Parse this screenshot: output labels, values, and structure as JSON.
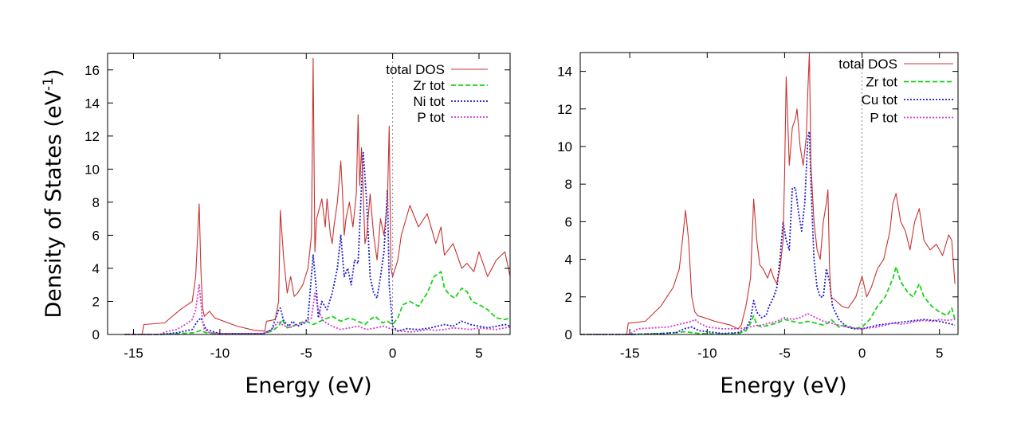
{
  "colors": {
    "total DOS": "#c83232",
    "Zr tot": "#19d219",
    "Ni tot": "#1e1ec8",
    "Cu tot": "#1e1ec8",
    "P tot": "#d23cd2",
    "axis": "#000000",
    "fermi": "#888888"
  },
  "chart_data": [
    {
      "type": "line",
      "xlabel": "Energy (eV)",
      "ylabel": "Density of States (eV-1)",
      "ylabel_parts": {
        "main": "Density of States (eV",
        "sup": "-1",
        "close": ")"
      },
      "xlim": [
        -16.5,
        6.8
      ],
      "ylim": [
        0,
        17
      ],
      "xticks": [
        -15,
        -10,
        -5,
        0,
        5
      ],
      "xtick_labels": [
        "-15",
        "-10",
        "-5",
        "0",
        "5"
      ],
      "yticks": [
        0,
        2,
        4,
        6,
        8,
        10,
        12,
        14,
        16
      ],
      "ytick_labels": [
        "0",
        "2",
        "4",
        "6",
        "8",
        "10",
        "12",
        "14",
        "16"
      ],
      "fermi_level": 0,
      "legend": [
        "total DOS",
        "Zr tot",
        "Ni tot",
        "P tot"
      ],
      "legend_position": "top-right",
      "series": [
        {
          "name": "total DOS",
          "style": "solid",
          "x": [
            -15.5,
            -14.5,
            -14.4,
            -13.2,
            -12.3,
            -11.6,
            -11.4,
            -11.2,
            -11.1,
            -11.0,
            -10.9,
            -10.8,
            -10.6,
            -10.3,
            -9.0,
            -8.0,
            -7.4,
            -7.3,
            -6.8,
            -6.6,
            -6.5,
            -6.3,
            -6.1,
            -5.9,
            -5.7,
            -5.5,
            -5.2,
            -4.9,
            -4.7,
            -4.6,
            -4.5,
            -4.4,
            -4.1,
            -3.9,
            -3.8,
            -3.6,
            -3.5,
            -3.4,
            -3.2,
            -3.0,
            -2.9,
            -2.8,
            -2.7,
            -2.5,
            -2.3,
            -2.1,
            -2.0,
            -1.9,
            -1.8,
            -1.7,
            -1.6,
            -1.5,
            -1.3,
            -1.1,
            -0.9,
            -0.7,
            -0.5,
            -0.3,
            -0.2,
            -0.1,
            0.0,
            0.3,
            0.5,
            1.0,
            1.5,
            2.0,
            2.5,
            2.8,
            3.0,
            3.5,
            4.0,
            4.3,
            4.7,
            5.0,
            5.5,
            6.0,
            6.5,
            6.8
          ],
          "y": [
            0,
            0,
            0.6,
            0.7,
            1.5,
            2.0,
            3.5,
            7.9,
            4.0,
            1.6,
            1.1,
            1.2,
            1.4,
            1.0,
            0.5,
            0.25,
            0.2,
            0.8,
            0.9,
            2.0,
            7.5,
            4.5,
            2.5,
            3.5,
            2.3,
            2.5,
            3.0,
            4.0,
            6.0,
            16.7,
            5.0,
            7.0,
            8.2,
            6.5,
            8.2,
            6.0,
            5.5,
            6.5,
            8.0,
            10.5,
            8.5,
            6.0,
            7.0,
            8.0,
            6.5,
            8.5,
            13.3,
            9.0,
            11.3,
            8.5,
            5.5,
            6.0,
            8.5,
            6.0,
            4.5,
            7.0,
            6.0,
            8.0,
            12.6,
            4.0,
            3.5,
            4.5,
            6.0,
            7.8,
            6.5,
            7.3,
            5.5,
            6.5,
            4.8,
            5.5,
            4.0,
            4.3,
            3.8,
            5.0,
            3.5,
            4.5,
            5.0,
            3.5
          ]
        },
        {
          "name": "Zr tot",
          "style": "dashed",
          "x": [
            -15.5,
            -13.5,
            -12.5,
            -11.5,
            -11.1,
            -10.8,
            -10.0,
            -7.5,
            -7.0,
            -6.6,
            -6.4,
            -6.1,
            -5.8,
            -5.4,
            -5.0,
            -4.6,
            -4.4,
            -4.0,
            -3.5,
            -3.0,
            -2.5,
            -2.0,
            -1.6,
            -1.3,
            -1.0,
            -0.6,
            -0.3,
            0.0,
            0.3,
            0.6,
            1.0,
            1.5,
            2.0,
            2.4,
            2.8,
            3.0,
            3.3,
            3.6,
            4.0,
            4.3,
            4.6,
            5.0,
            5.5,
            6.0,
            6.5,
            6.8
          ],
          "y": [
            0,
            0,
            0.05,
            0.1,
            0.25,
            0.1,
            0.05,
            0.05,
            0.2,
            0.5,
            0.9,
            0.4,
            0.5,
            0.7,
            0.8,
            0.6,
            0.7,
            0.9,
            1.1,
            0.8,
            1.0,
            0.8,
            0.6,
            0.9,
            1.1,
            0.7,
            0.8,
            0.6,
            1.0,
            1.8,
            2.0,
            1.7,
            2.5,
            3.5,
            3.8,
            2.8,
            2.4,
            2.2,
            2.8,
            2.6,
            2.0,
            1.8,
            1.5,
            1.0,
            0.9,
            1.0
          ]
        },
        {
          "name": "Ni tot",
          "style": "dotted",
          "x": [
            -15.5,
            -13.5,
            -12.5,
            -11.6,
            -11.3,
            -11.1,
            -10.8,
            -10.0,
            -7.5,
            -7.0,
            -6.6,
            -6.5,
            -6.3,
            -6.0,
            -5.8,
            -5.5,
            -5.1,
            -4.9,
            -4.6,
            -4.4,
            -4.3,
            -4.1,
            -3.8,
            -3.5,
            -3.2,
            -3.0,
            -2.8,
            -2.6,
            -2.4,
            -2.2,
            -2.0,
            -1.8,
            -1.7,
            -1.5,
            -1.3,
            -1.1,
            -0.9,
            -0.7,
            -0.5,
            -0.3,
            -0.2,
            0.0,
            0.3,
            0.8,
            1.5,
            2.2,
            3.0,
            3.5,
            4.0,
            4.5,
            5.0,
            5.5,
            6.0,
            6.5,
            6.8
          ],
          "y": [
            0,
            0,
            0.1,
            0.3,
            0.8,
            1.0,
            0.3,
            0.05,
            0.05,
            0.3,
            1.5,
            1.6,
            0.8,
            0.5,
            0.8,
            0.5,
            0.7,
            1.0,
            4.8,
            2.5,
            1.0,
            2.0,
            1.5,
            2.5,
            4.0,
            6.0,
            3.5,
            4.0,
            3.0,
            4.5,
            4.3,
            9.0,
            11.0,
            8.0,
            3.5,
            2.5,
            2.2,
            3.5,
            5.0,
            8.7,
            3.0,
            0.5,
            0.2,
            0.35,
            0.3,
            0.4,
            0.6,
            0.5,
            0.8,
            0.6,
            0.5,
            0.4,
            0.5,
            0.6,
            0.5
          ]
        },
        {
          "name": "P tot",
          "style": "dotted",
          "x": [
            -15.5,
            -13.5,
            -13.0,
            -12.5,
            -12.0,
            -11.6,
            -11.4,
            -11.2,
            -11.1,
            -11.0,
            -10.9,
            -10.6,
            -10.0,
            -7.5,
            -7.0,
            -6.6,
            -6.4,
            -6.2,
            -6.0,
            -5.5,
            -5.0,
            -4.7,
            -4.5,
            -4.3,
            -4.0,
            -3.5,
            -3.0,
            -2.5,
            -2.0,
            -1.5,
            -1.0,
            -0.5,
            0.0,
            0.5,
            1.0,
            1.5,
            2.0,
            2.5,
            3.0,
            3.5,
            4.0,
            4.5,
            5.0,
            5.5,
            6.0,
            6.5,
            6.8
          ],
          "y": [
            0,
            0,
            0.2,
            0.3,
            0.6,
            0.9,
            1.5,
            3.0,
            2.0,
            0.8,
            0.3,
            0.1,
            0.05,
            0.05,
            0.3,
            0.8,
            0.6,
            0.5,
            0.4,
            0.6,
            0.8,
            1.0,
            2.5,
            1.5,
            0.8,
            0.5,
            0.3,
            0.4,
            0.5,
            0.3,
            0.4,
            0.5,
            0.3,
            0.2,
            0.15,
            0.2,
            0.3,
            0.25,
            0.3,
            0.4,
            0.35,
            0.3,
            0.4,
            0.35,
            0.3,
            0.4,
            0.45
          ]
        }
      ]
    },
    {
      "type": "line",
      "xlabel": "Energy (eV)",
      "ylabel": "",
      "xlim": [
        -18.2,
        6.2
      ],
      "ylim": [
        0,
        15
      ],
      "xticks": [
        -15,
        -10,
        -5,
        0,
        5
      ],
      "xtick_labels": [
        "-15",
        "-10",
        "-5",
        "0",
        "5"
      ],
      "yticks": [
        0,
        2,
        4,
        6,
        8,
        10,
        12,
        14
      ],
      "ytick_labels": [
        "0",
        "2",
        "4",
        "6",
        "8",
        "10",
        "12",
        "14"
      ],
      "fermi_level": 0,
      "legend": [
        "total DOS",
        "Zr tot",
        "Cu tot",
        "P tot"
      ],
      "legend_position": "top-right",
      "series": [
        {
          "name": "total DOS",
          "style": "solid",
          "x": [
            -18.2,
            -15.2,
            -15.1,
            -14.0,
            -13.0,
            -12.2,
            -11.8,
            -11.6,
            -11.4,
            -11.2,
            -11.0,
            -10.8,
            -10.6,
            -10.2,
            -9.5,
            -8.5,
            -8.0,
            -7.8,
            -7.5,
            -7.2,
            -7.0,
            -6.8,
            -6.6,
            -6.4,
            -6.1,
            -5.9,
            -5.7,
            -5.5,
            -5.3,
            -5.1,
            -5.0,
            -4.9,
            -4.7,
            -4.5,
            -4.3,
            -4.2,
            -4.0,
            -3.8,
            -3.6,
            -3.5,
            -3.4,
            -3.3,
            -3.1,
            -2.9,
            -2.7,
            -2.5,
            -2.3,
            -2.2,
            -2.1,
            -2.0,
            -1.7,
            -1.3,
            -0.9,
            -0.4,
            0.0,
            0.3,
            0.6,
            1.0,
            1.4,
            1.8,
            2.0,
            2.2,
            2.5,
            2.8,
            3.1,
            3.4,
            3.7,
            4.0,
            4.4,
            4.8,
            5.2,
            5.6,
            5.8,
            6.0
          ],
          "y": [
            0,
            0,
            0.6,
            0.7,
            1.5,
            2.5,
            3.5,
            5.0,
            6.6,
            5.0,
            2.0,
            1.2,
            1.0,
            0.9,
            0.7,
            0.5,
            0.3,
            0.5,
            1.5,
            3.0,
            7.2,
            5.0,
            3.7,
            3.5,
            3.0,
            3.5,
            3.0,
            2.7,
            3.5,
            5.0,
            8.5,
            13.7,
            9.0,
            11.0,
            11.5,
            12.0,
            10.0,
            9.0,
            10.5,
            13.0,
            15.0,
            9.0,
            6.0,
            4.5,
            4.0,
            6.0,
            7.0,
            7.7,
            3.5,
            2.0,
            1.8,
            1.5,
            1.4,
            2.0,
            3.1,
            2.0,
            2.5,
            3.5,
            4.0,
            5.5,
            7.0,
            7.5,
            6.0,
            5.5,
            4.5,
            6.0,
            6.7,
            5.0,
            4.5,
            4.8,
            4.2,
            5.3,
            5.0,
            2.7
          ]
        },
        {
          "name": "Zr tot",
          "style": "dashed",
          "x": [
            -18.2,
            -15.0,
            -13.0,
            -12.0,
            -11.5,
            -11.0,
            -10.5,
            -9.0,
            -8.0,
            -7.5,
            -7.2,
            -7.0,
            -6.8,
            -6.5,
            -6.0,
            -5.5,
            -5.0,
            -4.5,
            -4.0,
            -3.5,
            -3.0,
            -2.5,
            -2.2,
            -2.0,
            -1.5,
            -1.0,
            -0.5,
            0.0,
            0.5,
            1.0,
            1.5,
            2.0,
            2.2,
            2.5,
            3.0,
            3.3,
            3.7,
            4.0,
            4.5,
            5.0,
            5.5,
            5.8,
            6.0
          ],
          "y": [
            0,
            0,
            0.05,
            0.1,
            0.15,
            0.1,
            0.05,
            0.02,
            0.05,
            0.2,
            0.6,
            1.0,
            0.5,
            0.4,
            0.5,
            0.6,
            0.8,
            0.7,
            0.6,
            0.7,
            0.6,
            0.5,
            0.6,
            0.8,
            0.4,
            0.5,
            0.3,
            0.4,
            0.8,
            1.5,
            2.0,
            3.0,
            3.6,
            2.8,
            2.2,
            2.0,
            2.7,
            2.0,
            1.5,
            1.2,
            1.0,
            1.4,
            0.8
          ]
        },
        {
          "name": "Cu tot",
          "style": "dotted",
          "x": [
            -18.2,
            -15.0,
            -13.0,
            -12.0,
            -11.5,
            -11.0,
            -10.5,
            -9.0,
            -8.0,
            -7.5,
            -7.2,
            -7.0,
            -6.8,
            -6.5,
            -6.2,
            -6.0,
            -5.7,
            -5.5,
            -5.3,
            -5.1,
            -4.9,
            -4.7,
            -4.5,
            -4.3,
            -4.1,
            -3.9,
            -3.7,
            -3.5,
            -3.4,
            -3.3,
            -3.1,
            -2.9,
            -2.7,
            -2.5,
            -2.3,
            -2.1,
            -1.9,
            -1.5,
            -1.0,
            -0.5,
            0.0,
            0.5,
            1.0,
            2.0,
            3.0,
            4.0,
            5.0,
            5.5,
            6.0
          ],
          "y": [
            0,
            0,
            0.05,
            0.1,
            0.3,
            0.4,
            0.2,
            0.05,
            0.1,
            0.3,
            0.8,
            1.8,
            1.2,
            0.9,
            1.0,
            1.5,
            2.0,
            2.5,
            4.0,
            6.0,
            5.0,
            4.5,
            7.8,
            7.8,
            6.5,
            5.5,
            7.0,
            10.5,
            10.8,
            8.0,
            4.0,
            2.5,
            2.0,
            2.0,
            3.5,
            2.8,
            1.5,
            0.8,
            0.4,
            0.3,
            0.3,
            0.4,
            0.5,
            0.6,
            0.7,
            0.8,
            0.7,
            0.6,
            0.5
          ]
        },
        {
          "name": "P tot",
          "style": "dotted",
          "x": [
            -18.2,
            -15.0,
            -14.5,
            -13.5,
            -12.5,
            -11.5,
            -11.0,
            -10.8,
            -10.5,
            -10.0,
            -9.0,
            -8.0,
            -7.5,
            -7.0,
            -6.5,
            -6.0,
            -5.5,
            -5.0,
            -4.5,
            -4.0,
            -3.5,
            -3.0,
            -2.5,
            -2.0,
            -1.5,
            -1.0,
            -0.5,
            0.0,
            0.5,
            1.0,
            1.5,
            2.0,
            2.5,
            3.0,
            3.5,
            4.0,
            4.5,
            5.0,
            5.5,
            6.0
          ],
          "y": [
            0,
            0,
            0.3,
            0.35,
            0.4,
            0.6,
            0.7,
            0.8,
            0.6,
            0.4,
            0.3,
            0.3,
            0.35,
            0.45,
            0.5,
            0.6,
            0.7,
            0.9,
            0.8,
            0.9,
            1.1,
            0.9,
            0.7,
            0.6,
            0.5,
            0.4,
            0.35,
            0.3,
            0.35,
            0.4,
            0.5,
            0.6,
            0.55,
            0.6,
            0.7,
            0.75,
            0.7,
            0.8,
            0.75,
            0.8
          ]
        }
      ]
    }
  ]
}
